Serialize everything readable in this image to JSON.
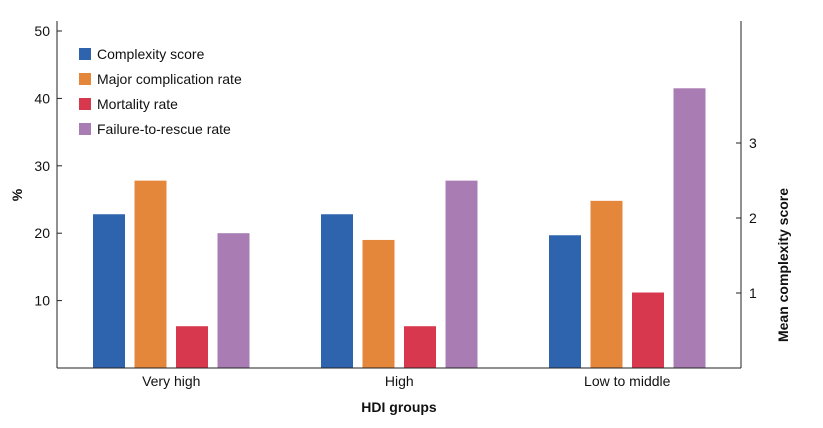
{
  "chart_data": {
    "type": "bar",
    "xlabel": "HDI groups",
    "ylabel": "%",
    "y2label": "Mean complexity score",
    "ylim": [
      0,
      50
    ],
    "yticks": [
      10,
      20,
      30,
      40,
      50
    ],
    "y2lim": [
      0,
      4.6
    ],
    "y2ticks": [
      1,
      2,
      3
    ],
    "categories": [
      "Very high",
      "High",
      "Low to middle"
    ],
    "series": [
      {
        "name": "Complexity score",
        "axis": "right",
        "color": "#2e63ad",
        "values": [
          2.05,
          2.05,
          1.77
        ]
      },
      {
        "name": "Major complication rate",
        "axis": "left",
        "color": "#e5873b",
        "values": [
          27.8,
          19.0,
          24.8
        ]
      },
      {
        "name": "Mortality rate",
        "axis": "left",
        "color": "#d7384d",
        "values": [
          6.2,
          6.2,
          11.2
        ]
      },
      {
        "name": "Failure-to-rescue rate",
        "axis": "left",
        "color": "#a97db3",
        "values": [
          20.0,
          27.8,
          41.5
        ]
      }
    ],
    "legend_position": "top-left",
    "grid": false
  }
}
